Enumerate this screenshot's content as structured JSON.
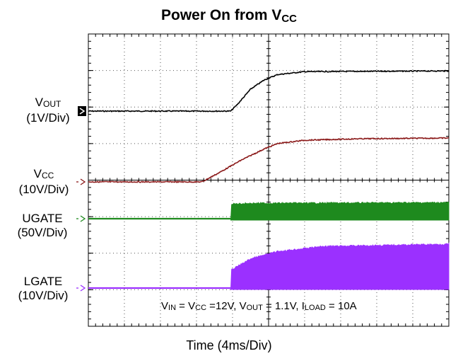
{
  "title": {
    "main": "Power On from V",
    "sub": "CC"
  },
  "xlabel": "Time (4ms/Div)",
  "annotation": {
    "vin": "V",
    "vin_sub": "IN",
    "eq1": " = V",
    "vcc_sub": "CC",
    "eq2": " =12V, V",
    "vout_sub": "OUT",
    "eq3": " = 1.1V, I",
    "iload_sub": "LOAD",
    "eq4": " = 10A"
  },
  "channels": [
    {
      "name": "V",
      "name_sub": "OUT",
      "scale": "(1V/Div)",
      "color": "#000000"
    },
    {
      "name": "V",
      "name_sub": "CC",
      "scale": "(10V/Div)",
      "color": "#8b1a1a"
    },
    {
      "name": "UGATE",
      "name_sub": "",
      "scale": "(50V/Div)",
      "color": "#1e8a1e"
    },
    {
      "name": "LGATE",
      "name_sub": "",
      "scale": "(10V/Div)",
      "color": "#9b30ff"
    }
  ],
  "chart_data": {
    "type": "line",
    "title": "Power On from VCC",
    "xlabel": "Time (4ms/Div)",
    "x_unit": "ms",
    "x_divisions": 10,
    "y_divisions": 8,
    "xlim": [
      0,
      40
    ],
    "grid": true,
    "series": [
      {
        "name": "VOUT (1V/Div)",
        "color": "#000000",
        "points": [
          [
            0,
            0
          ],
          [
            15.8,
            0
          ],
          [
            16.6,
            0.2
          ],
          [
            18,
            0.6
          ],
          [
            19.5,
            0.85
          ],
          [
            21,
            1.0
          ],
          [
            24,
            1.08
          ],
          [
            40,
            1.1
          ]
        ]
      },
      {
        "name": "VCC (10V/Div)",
        "color": "#8b1a1a",
        "points": [
          [
            0,
            0
          ],
          [
            12.6,
            0
          ],
          [
            14.5,
            2.5
          ],
          [
            17,
            6
          ],
          [
            19.5,
            9
          ],
          [
            21,
            10.5
          ],
          [
            24,
            11.4
          ],
          [
            30,
            11.8
          ],
          [
            40,
            12
          ]
        ]
      },
      {
        "name": "UGATE (50V/Div)",
        "color": "#1e8a1e",
        "points": [
          [
            0,
            0
          ],
          [
            15.8,
            0
          ],
          [
            15.9,
            20
          ],
          [
            18,
            21
          ],
          [
            40,
            22
          ]
        ],
        "switching": true
      },
      {
        "name": "LGATE (10V/Div)",
        "color": "#9b30ff",
        "points": [
          [
            0,
            0
          ],
          [
            15.8,
            0
          ],
          [
            15.9,
            5
          ],
          [
            18,
            8
          ],
          [
            21,
            10
          ],
          [
            26,
            11.4
          ],
          [
            40,
            12
          ]
        ],
        "switching": true
      }
    ]
  }
}
